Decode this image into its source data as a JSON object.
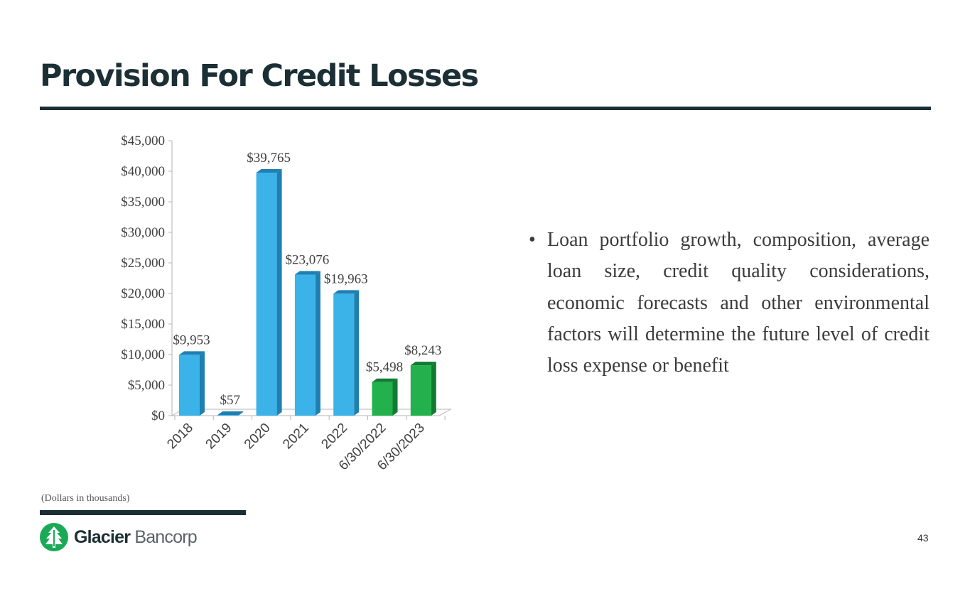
{
  "slide": {
    "title": "Provision For Credit Losses",
    "footnote": "(Dollars in thousands)",
    "page_number": "43"
  },
  "logo": {
    "name_bold": "Glacier",
    "name_light": " Bancorp",
    "icon": "glacier-tree-icon",
    "color": "#1aa956"
  },
  "bullets": [
    "Loan portfolio growth, composition, average loan size, credit quality considerations, economic forecasts and other environmental factors will determine the future level of credit loss expense or benefit"
  ],
  "chart_data": {
    "type": "bar",
    "categories": [
      "2018",
      "2019",
      "2020",
      "2021",
      "2022",
      "6/30/2022",
      "6/30/2023"
    ],
    "values": [
      9953,
      57,
      39765,
      23076,
      19963,
      5498,
      8243
    ],
    "data_labels": [
      "$9,953",
      "$57",
      "$39,765",
      "$23,076",
      "$19,963",
      "$5,498",
      "$8,243"
    ],
    "bar_colors": [
      "#3cb3e8",
      "#3cb3e8",
      "#3cb3e8",
      "#3cb3e8",
      "#3cb3e8",
      "#22b14c",
      "#22b14c"
    ],
    "side_colors": [
      "#1f7fb0",
      "#1f7fb0",
      "#1f7fb0",
      "#1f7fb0",
      "#1f7fb0",
      "#137a33",
      "#137a33"
    ],
    "y_ticks": [
      0,
      5000,
      10000,
      15000,
      20000,
      25000,
      30000,
      35000,
      40000,
      45000
    ],
    "y_tick_labels": [
      "$0",
      "$5,000",
      "$10,000",
      "$15,000",
      "$20,000",
      "$25,000",
      "$30,000",
      "$35,000",
      "$40,000",
      "$45,000"
    ],
    "ylim": [
      0,
      45000
    ],
    "grid": false,
    "legend": "none"
  }
}
